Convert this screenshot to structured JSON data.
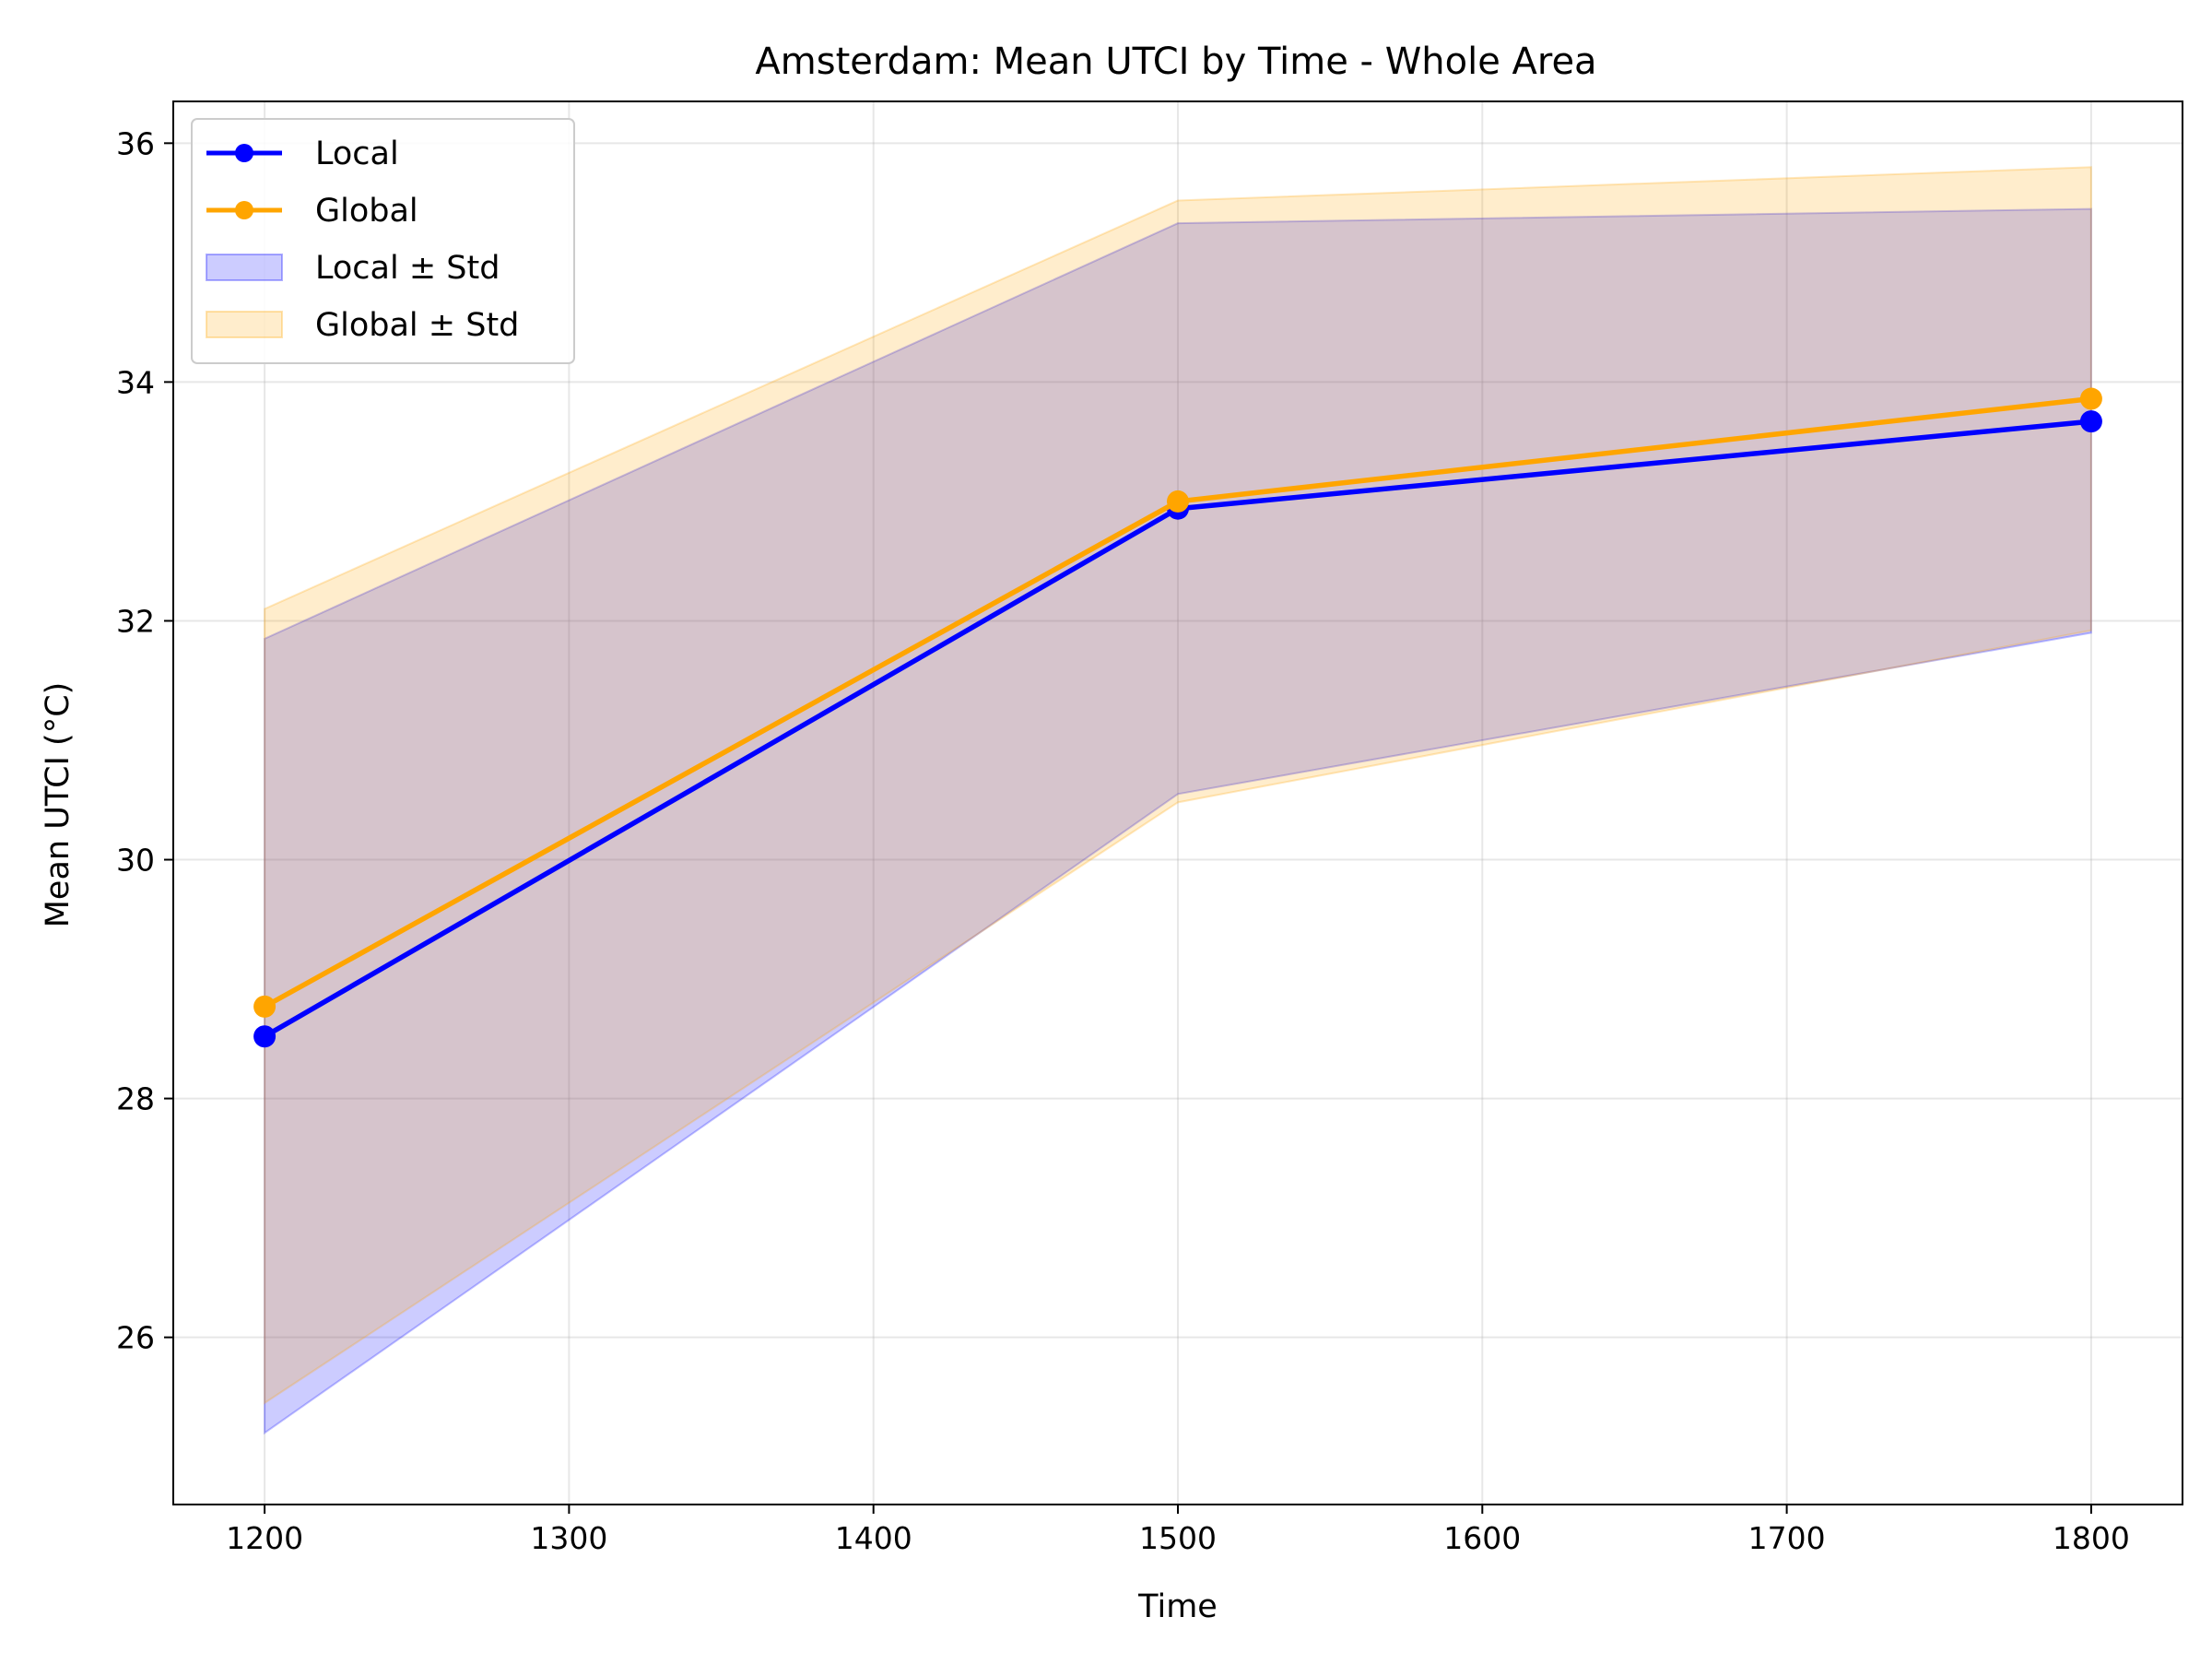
{
  "chart_data": {
    "type": "line",
    "title": "Amsterdam: Mean UTCI by Time - Whole Area",
    "xlabel": "Time",
    "ylabel": "Mean UTCI (°C)",
    "x": [
      1200,
      1500,
      1800
    ],
    "xlim": [
      1170,
      1830
    ],
    "ylim": [
      24.6,
      36.35
    ],
    "xticks": [
      1200,
      1300,
      1400,
      1500,
      1600,
      1700,
      1800
    ],
    "yticks": [
      26,
      28,
      30,
      32,
      34,
      36
    ],
    "grid": true,
    "legend_position": "top-left",
    "series": [
      {
        "name": "Local",
        "color": "#0000ff",
        "values": [
          28.52,
          32.94,
          33.67
        ],
        "std_upper": [
          31.85,
          35.33,
          35.45
        ],
        "std_lower": [
          25.2,
          30.55,
          31.9
        ]
      },
      {
        "name": "Global",
        "color": "#ffa500",
        "values": [
          28.77,
          33.0,
          33.86
        ],
        "std_upper": [
          32.1,
          35.52,
          35.8
        ],
        "std_lower": [
          25.45,
          30.48,
          31.92
        ]
      }
    ],
    "bands": [
      {
        "name": "Local ± Std",
        "series": 0,
        "color": "#0000ff",
        "opacity": 0.2
      },
      {
        "name": "Global ± Std",
        "series": 1,
        "color": "#ffa500",
        "opacity": 0.2
      }
    ]
  }
}
